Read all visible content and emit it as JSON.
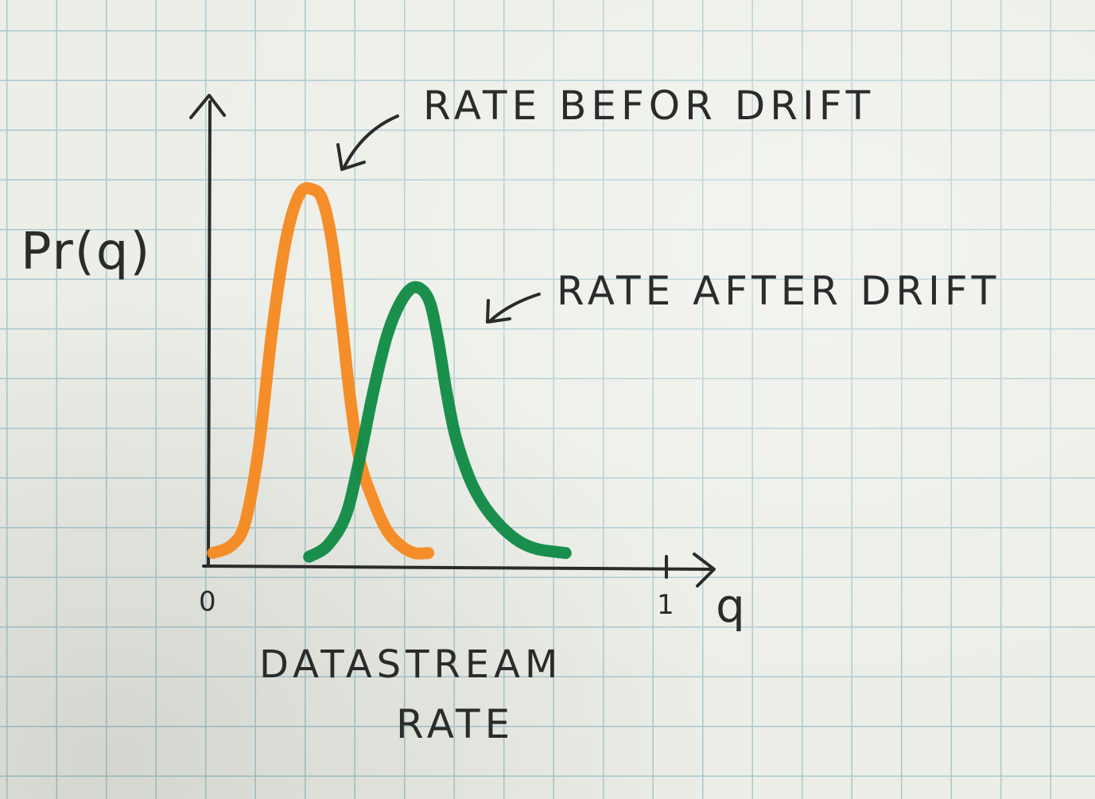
{
  "chart_data": {
    "type": "line",
    "title": "",
    "xlabel": "DATASTREAM RATE",
    "xlabel_lines": [
      "DATASTREAM",
      "RATE"
    ],
    "xaxis_symbol": "q",
    "ylabel": "Pr(q)",
    "xlim": [
      0,
      1
    ],
    "ylim": [
      0,
      1
    ],
    "x_ticks": [
      {
        "value": 0,
        "label": "0"
      },
      {
        "value": 1,
        "label": "1"
      }
    ],
    "grid": true,
    "series": [
      {
        "name": "RATE BEFOR DRIFT",
        "color": "#f58a22",
        "x": [
          0.01,
          0.05,
          0.08,
          0.11,
          0.14,
          0.17,
          0.2,
          0.23,
          0.25,
          0.27,
          0.29,
          0.31,
          0.33,
          0.36,
          0.39,
          0.42,
          0.45,
          0.48
        ],
        "y": [
          0.02,
          0.04,
          0.1,
          0.3,
          0.62,
          0.86,
          0.98,
          0.99,
          0.96,
          0.85,
          0.65,
          0.43,
          0.27,
          0.16,
          0.08,
          0.04,
          0.02,
          0.02
        ]
      },
      {
        "name": "RATE AFTER DRIFT",
        "color": "#0f8a45",
        "x": [
          0.22,
          0.26,
          0.3,
          0.33,
          0.36,
          0.39,
          0.42,
          0.45,
          0.48,
          0.5,
          0.52,
          0.54,
          0.57,
          0.6,
          0.64,
          0.68,
          0.72,
          0.78
        ],
        "y": [
          0.01,
          0.04,
          0.12,
          0.27,
          0.45,
          0.6,
          0.69,
          0.73,
          0.7,
          0.6,
          0.45,
          0.33,
          0.22,
          0.15,
          0.09,
          0.05,
          0.03,
          0.02
        ]
      }
    ]
  }
}
